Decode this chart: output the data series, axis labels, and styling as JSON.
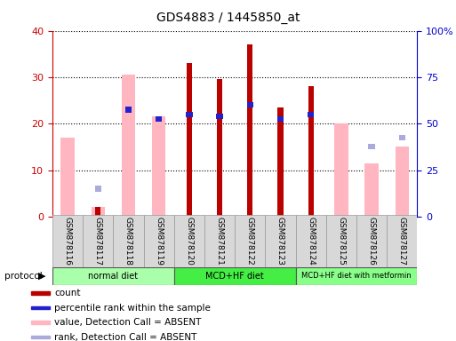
{
  "title": "GDS4883 / 1445850_at",
  "samples": [
    "GSM878116",
    "GSM878117",
    "GSM878118",
    "GSM878119",
    "GSM878120",
    "GSM878121",
    "GSM878122",
    "GSM878123",
    "GSM878124",
    "GSM878125",
    "GSM878126",
    "GSM878127"
  ],
  "count_values": [
    0,
    2,
    0,
    0,
    33,
    29.5,
    37,
    23.5,
    28,
    0,
    0,
    0
  ],
  "percentile_values": [
    0,
    0,
    23,
    21,
    22,
    21.5,
    24,
    21,
    22,
    0,
    0,
    0
  ],
  "absent_value_bars": [
    17,
    2,
    30.5,
    21.5,
    0,
    0,
    0,
    0,
    0,
    20,
    11.5,
    15
  ],
  "absent_rank_squares": [
    0,
    6,
    0,
    0,
    0,
    0,
    0,
    0,
    0,
    0,
    15,
    17
  ],
  "group_colors": [
    "#aaffaa",
    "#44ee44",
    "#88ff88"
  ],
  "group_labels": [
    "normal diet",
    "MCD+HF diet",
    "MCD+HF diet with metformin"
  ],
  "group_starts": [
    0,
    4,
    8
  ],
  "group_ends": [
    4,
    8,
    12
  ],
  "ylim_left": [
    0,
    40
  ],
  "yticks_left": [
    0,
    10,
    20,
    30,
    40
  ],
  "yticks_right": [
    0,
    25,
    50,
    75,
    100
  ],
  "ytick_labels_right": [
    "0",
    "25",
    "50",
    "75",
    "100%"
  ],
  "count_color": "#bb0000",
  "percentile_color": "#2222cc",
  "absent_value_color": "#ffb6c1",
  "absent_rank_color": "#aaaadd",
  "left_axis_color": "#cc0000",
  "right_axis_color": "#0000cc",
  "legend_items": [
    {
      "color": "#bb0000",
      "label": "count"
    },
    {
      "color": "#2222cc",
      "label": "percentile rank within the sample"
    },
    {
      "color": "#ffb6c1",
      "label": "value, Detection Call = ABSENT"
    },
    {
      "color": "#aaaadd",
      "label": "rank, Detection Call = ABSENT"
    }
  ],
  "protocol_label": "protocol",
  "title_fontsize": 10
}
